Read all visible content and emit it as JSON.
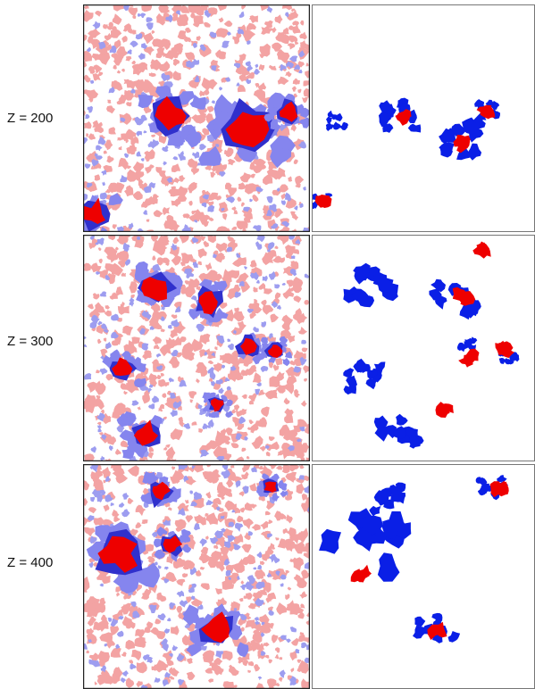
{
  "rows": [
    {
      "label": "Z = 200"
    },
    {
      "label": "Z = 300"
    },
    {
      "label": "Z = 400"
    }
  ]
}
